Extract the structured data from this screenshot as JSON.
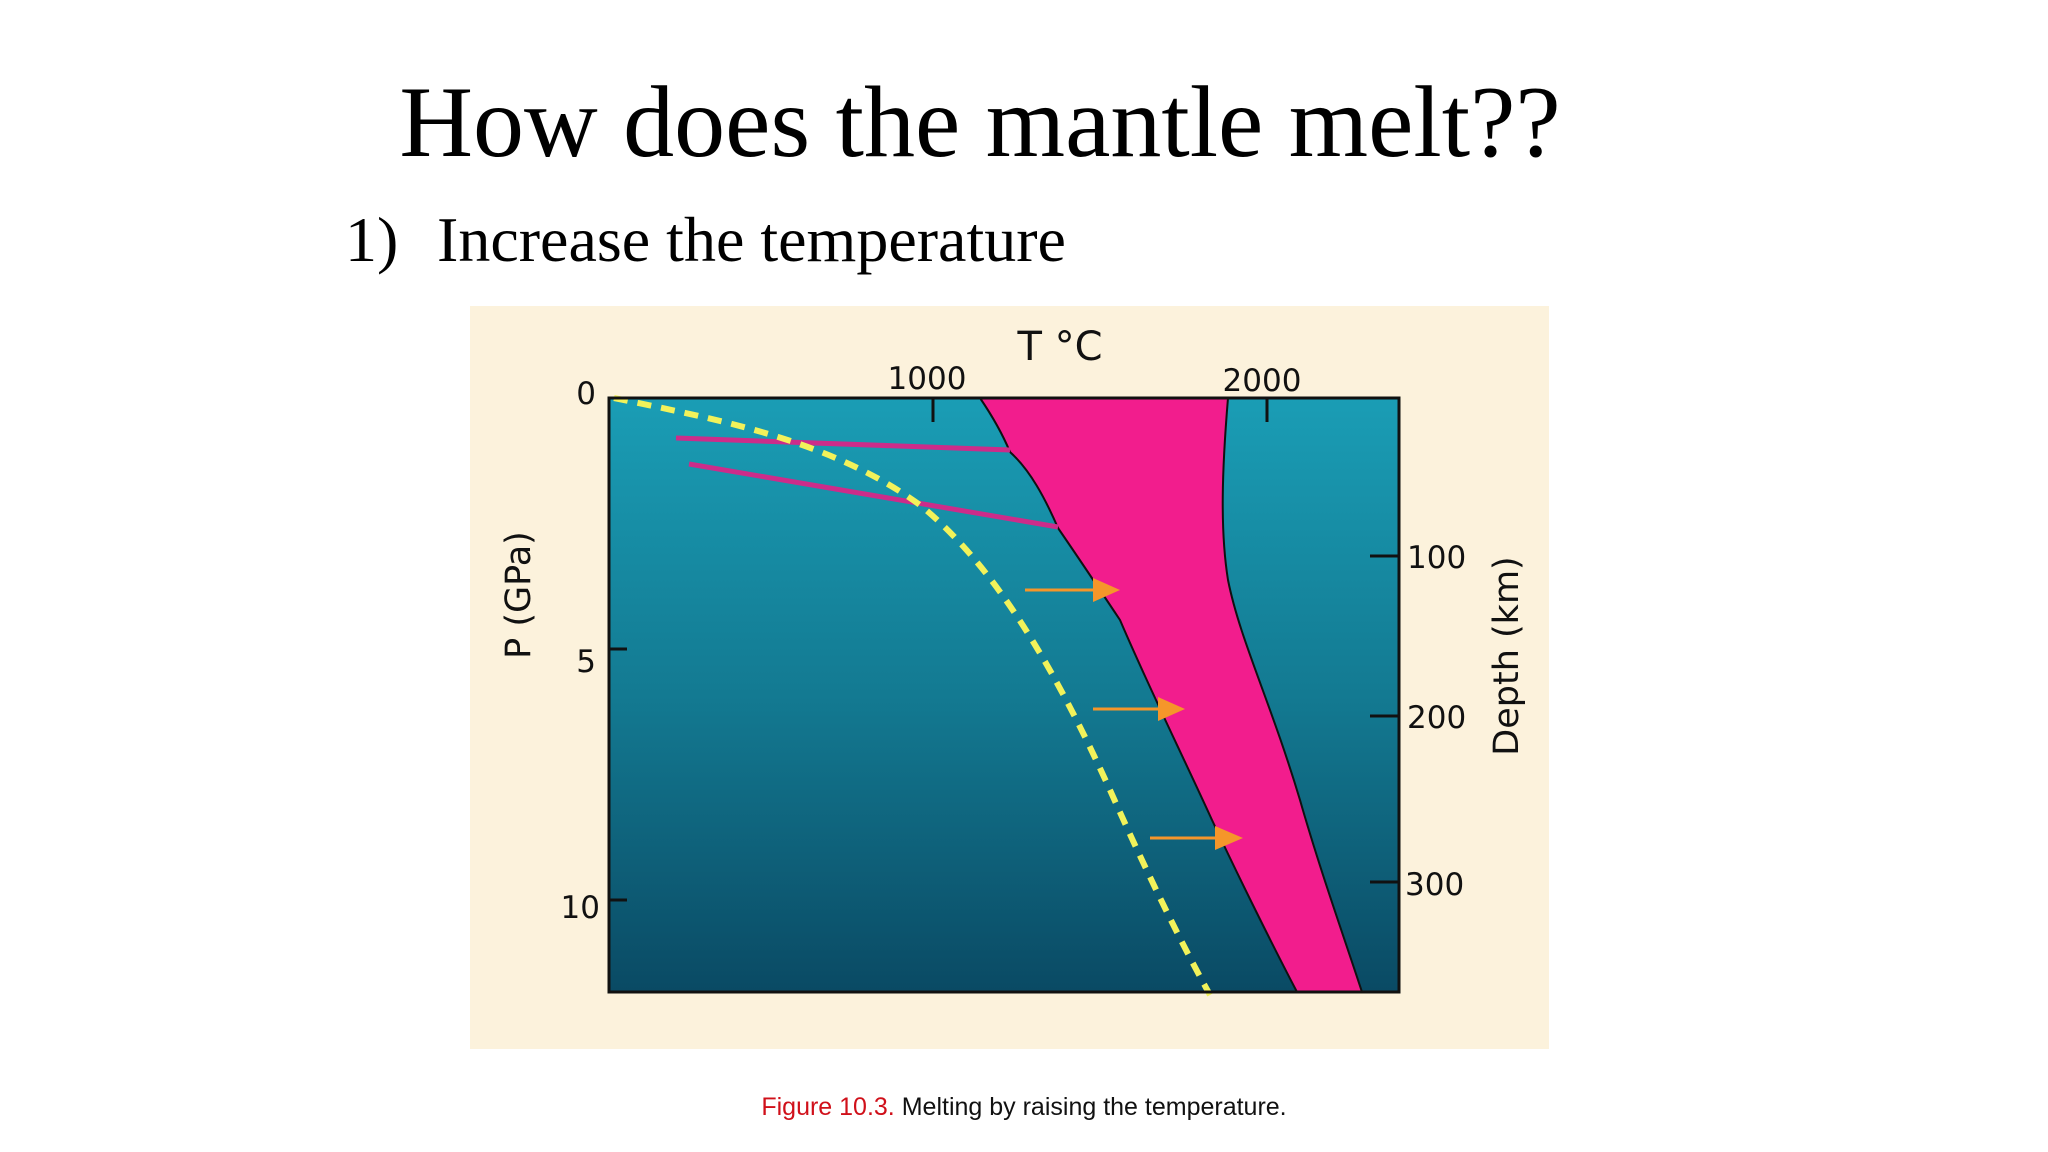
{
  "slide": {
    "title": "How does the mantle melt??",
    "bullet_number": "1)",
    "bullet_text": "Increase the temperature"
  },
  "figure": {
    "top_axis_title": "T °C",
    "top_ticks": [
      "1000",
      "2000"
    ],
    "left_axis_title": "P (GPa)",
    "left_ticks": [
      "0",
      "5",
      "10"
    ],
    "right_axis_title": "Depth (km)",
    "right_ticks": [
      "100",
      "200",
      "300"
    ],
    "colors": {
      "background": "#fcf2dc",
      "mantle_top": "#1a9db5",
      "mantle_bottom": "#0a4a64",
      "melt_region": "#f21d8d",
      "geotherm": "#f2f25a",
      "arrows": "#f5962a",
      "lines": "#cc2c8a"
    }
  },
  "caption": {
    "figure_number": "Figure 10.3.",
    "text": "Melting by raising the temperature."
  }
}
